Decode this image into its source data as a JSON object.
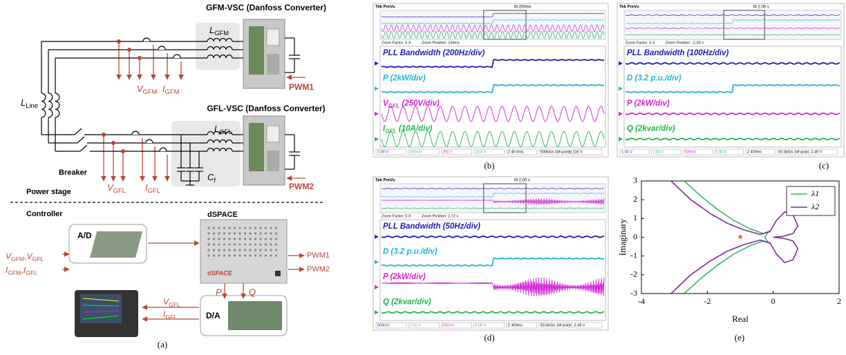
{
  "panel_a": {
    "gfm_title": "GFM-VSC (Danfoss Converter)",
    "gfl_title": "GFL-VSC (Danfoss Converter)",
    "l_gfm": {
      "main": "L",
      "sub": "GFM"
    },
    "l_gfl": {
      "main": "L",
      "sub": "GFL"
    },
    "l_line": {
      "main": "L",
      "sub": "Line"
    },
    "c_f": {
      "main": "C",
      "sub": "f"
    },
    "v_gfm": {
      "main": "V",
      "sub": "GFM"
    },
    "i_gfm": {
      "main": "I",
      "sub": "GFM"
    },
    "v_gfl": {
      "main": "V",
      "sub": "GFL"
    },
    "i_gfl": {
      "main": "I",
      "sub": "GFL"
    },
    "pwm1": "PWM1",
    "pwm2": "PWM2",
    "breaker": "Breaker",
    "power_stage": "Power stage",
    "controller": "Controller",
    "ad": "A/D",
    "dspace": "dSPACE",
    "dspace_logo": "dSPACE",
    "da": "D/A",
    "p": "P",
    "q": "Q",
    "ctrl_pwm1": "PWM1",
    "ctrl_pwm2": "PWM2",
    "input_separator": ",",
    "in_v": [
      {
        "main": "V",
        "sub": "GFM"
      },
      {
        "main": "V",
        "sub": "GFL"
      }
    ],
    "in_i": [
      {
        "main": "I",
        "sub": "GFM"
      },
      {
        "main": "I",
        "sub": "GFL"
      }
    ],
    "out_v": {
      "main": "V",
      "sub": "GFL"
    },
    "out_i": {
      "main": "I",
      "sub": "GFL"
    },
    "caption": "(a)"
  },
  "scopes": [
    {
      "header": {
        "brand": "Tek PreVu",
        "time": "M 200ms",
        "zoom_factor": "Zoom Factor: 5 X",
        "zoom_position": "Zoom Position: 136ms"
      },
      "traces": [
        {
          "main": "PLL Bandwidth (200Hz/div)",
          "color": "#1c1cb4",
          "shape": "step-up"
        },
        {
          "main": "P (2kW/div)",
          "color": "#22b5d2",
          "shape": "step-up"
        },
        {
          "main": "V",
          "sub": "GFL",
          "rest": " (250V/div)",
          "color": "#d21fd2",
          "shape": "sine"
        },
        {
          "main": "I",
          "sub": "GFL",
          "rest": " (10A/div)",
          "color": "#22b14c",
          "shape": "sine"
        }
      ],
      "footer": [
        "2.00 V",
        "500mV",
        "250 V",
        "10.0 V",
        "Z 40.0ms",
        "500kS/s 1M points",
        "116 V"
      ],
      "caption": "(b)"
    },
    {
      "header": {
        "brand": "Tek PreVu",
        "time": "M 2.00 s",
        "zoom_factor": "Zoom Factor: 5 X",
        "zoom_position": "Zoom Position: -2.00 s"
      },
      "traces": [
        {
          "main": "PLL Bandwidth (100Hz/div)",
          "color": "#1c1cb4",
          "shape": "flat"
        },
        {
          "main": "D (3.2 p.u./div)",
          "color": "#22b5d2",
          "shape": "step-up"
        },
        {
          "main": "P (2kW/div)",
          "color": "#d21fd2",
          "shape": "flat"
        },
        {
          "main": "Q (2kvar/div)",
          "color": "#22b14c",
          "shape": "flat"
        }
      ],
      "footer": [
        "1.00 V",
        "2.00 V",
        "500mV",
        "5.00 V",
        "Z 400ms",
        "50.0kS/s 1M points",
        "-2.49 V"
      ],
      "caption": "(c)"
    },
    {
      "header": {
        "brand": "Tek PreVu",
        "time": "M 2.00 s",
        "zoom_factor": "Zoom Factor: 5 X",
        "zoom_position": "Zoom Position: 2.72 s"
      },
      "traces": [
        {
          "main": "PLL Bandwidth (50Hz/div)",
          "color": "#1c1cb4",
          "shape": "flat"
        },
        {
          "main": "D (3.2 p.u./div)",
          "color": "#22b5d2",
          "shape": "step-up"
        },
        {
          "main": "P (2kW/div)",
          "color": "#d21fd2",
          "shape": "oscillation"
        },
        {
          "main": "Q (2kvar/div)",
          "color": "#22b14c",
          "shape": "flat"
        }
      ],
      "footer": [
        "500mV",
        "2.00 V",
        "500mV",
        "5.00 V",
        "Z 400ms",
        "50.0kS/s 1M points",
        "-2.49 V"
      ],
      "caption": "(d)"
    }
  ],
  "chart_data": {
    "type": "line",
    "xlabel": "Real",
    "ylabel": "Imaginary",
    "xlim": [
      -4,
      2
    ],
    "xticks": [
      -4,
      -2,
      0,
      2
    ],
    "ylim": [
      -3,
      3
    ],
    "yticks": [
      -3,
      -2,
      -1,
      0,
      1,
      2,
      3
    ],
    "legend": "upper right",
    "series": [
      {
        "name": "λ1",
        "color": "#2fb86a",
        "x": [
          -2.7,
          -2.2,
          -1.7,
          -1.2,
          -0.7,
          -0.3,
          -0.15,
          -0.25,
          -0.15,
          -0.3,
          -0.7,
          -1.2,
          -1.7,
          -2.2,
          -2.7
        ],
        "values": [
          3,
          2.2,
          1.5,
          0.9,
          0.45,
          0.2,
          0.3,
          0,
          -0.3,
          -0.2,
          -0.45,
          -0.9,
          -1.5,
          -2.2,
          -3
        ]
      },
      {
        "name": "λ2",
        "color": "#7b2a8e",
        "x": [
          -3.1,
          -2.5,
          -1.9,
          -1.4,
          -0.9,
          -0.4,
          -0.1,
          0.1,
          0.35,
          0.6,
          0.75,
          0.6,
          0.3,
          0,
          0.3,
          0.6,
          0.75,
          0.6,
          0.35,
          0.1,
          -0.1,
          -0.4,
          -0.9,
          -1.4,
          -1.9,
          -2.5,
          -3.1
        ],
        "values": [
          3,
          2,
          1.25,
          0.75,
          0.4,
          0.15,
          0.3,
          0.9,
          1.35,
          1.2,
          0.6,
          0.2,
          0.05,
          0,
          -0.05,
          -0.2,
          -0.6,
          -1.2,
          -1.35,
          -0.9,
          -0.3,
          -0.15,
          -0.4,
          -0.75,
          -1.25,
          -2,
          -3
        ]
      }
    ],
    "marker": {
      "x": -1,
      "y": 0,
      "color": "#d9534f"
    },
    "caption": "(e)"
  }
}
